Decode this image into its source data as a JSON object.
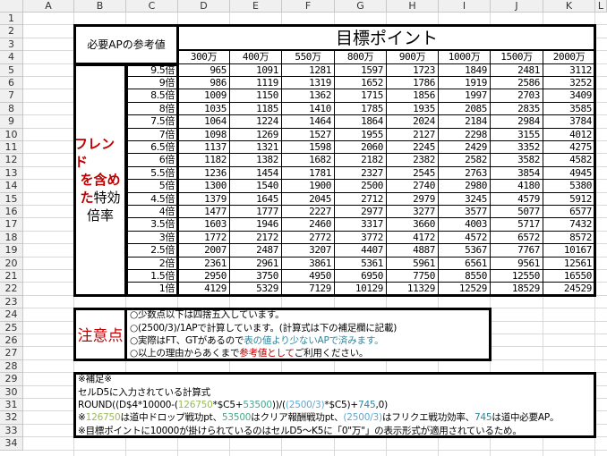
{
  "sheet": {
    "columns": [
      "A",
      "B",
      "C",
      "D",
      "E",
      "F",
      "G",
      "H",
      "I",
      "J",
      "K",
      "L"
    ],
    "row_numbers": [
      1,
      2,
      3,
      4,
      5,
      6,
      7,
      8,
      9,
      10,
      11,
      12,
      13,
      14,
      15,
      16,
      17,
      18,
      19,
      20,
      21,
      22,
      23,
      24,
      25,
      26,
      27,
      28,
      29,
      30,
      31,
      32,
      33,
      34
    ]
  },
  "table": {
    "header_label": "必要APの参考値",
    "title": "目標ポイント",
    "targets": [
      "300万",
      "400万",
      "550万",
      "800万",
      "900万",
      "1000万",
      "1500万",
      "2000万"
    ],
    "side_label": {
      "red_parts": [
        "フレンド",
        "を含め",
        "た"
      ],
      "black_parts": [
        "特効",
        "倍率"
      ],
      "red_color": "#c00000"
    },
    "multipliers": [
      "9.5倍",
      "9倍",
      "8.5倍",
      "8倍",
      "7.5倍",
      "7倍",
      "6.5倍",
      "6倍",
      "5.5倍",
      "5倍",
      "4.5倍",
      "4倍",
      "3.5倍",
      "3倍",
      "2.5倍",
      "2倍",
      "1.5倍",
      "1倍"
    ],
    "values": [
      [
        965,
        1091,
        1281,
        1597,
        1723,
        1849,
        2481,
        3112
      ],
      [
        986,
        1119,
        1319,
        1652,
        1786,
        1919,
        2586,
        3252
      ],
      [
        1009,
        1150,
        1362,
        1715,
        1856,
        1997,
        2703,
        3409
      ],
      [
        1035,
        1185,
        1410,
        1785,
        1935,
        2085,
        2835,
        3585
      ],
      [
        1064,
        1224,
        1464,
        1864,
        2024,
        2184,
        2984,
        3784
      ],
      [
        1098,
        1269,
        1527,
        1955,
        2127,
        2298,
        3155,
        4012
      ],
      [
        1137,
        1321,
        1598,
        2060,
        2245,
        2429,
        3352,
        4275
      ],
      [
        1182,
        1382,
        1682,
        2182,
        2382,
        2582,
        3582,
        4582
      ],
      [
        1236,
        1454,
        1781,
        2327,
        2545,
        2763,
        3854,
        4945
      ],
      [
        1300,
        1540,
        1900,
        2500,
        2740,
        2980,
        4180,
        5380
      ],
      [
        1379,
        1645,
        2045,
        2712,
        2979,
        3245,
        4579,
        5912
      ],
      [
        1477,
        1777,
        2227,
        2977,
        3277,
        3577,
        5077,
        6577
      ],
      [
        1603,
        1946,
        2460,
        3317,
        3660,
        4003,
        5717,
        7432
      ],
      [
        1772,
        2172,
        2772,
        3772,
        4172,
        4572,
        6572,
        8572
      ],
      [
        2007,
        2487,
        3207,
        4407,
        4887,
        5367,
        7767,
        10167
      ],
      [
        2361,
        2961,
        3861,
        5361,
        5961,
        6561,
        9561,
        12561
      ],
      [
        2950,
        3750,
        4950,
        6950,
        7750,
        8550,
        12550,
        16550
      ],
      [
        4129,
        5329,
        7129,
        10129,
        11329,
        12529,
        18529,
        24529
      ]
    ]
  },
  "notes": {
    "label": "注意点",
    "label_color": "#c00000",
    "lines": [
      [
        {
          "text": "○少数点以下は四捨五入しています。",
          "color": "#000000"
        }
      ],
      [
        {
          "text": "○(2500/3)/1APで計算しています。(計算式は下の補足欄に記載)",
          "color": "#000000"
        }
      ],
      [
        {
          "text": "○実際はFT、GTがあるので",
          "color": "#000000"
        },
        {
          "text": "表の値より少ないAPで済みます。",
          "color": "#31859c"
        }
      ],
      [
        {
          "text": "○以上の理由からあくまで",
          "color": "#000000"
        },
        {
          "text": "参考値として",
          "color": "#c00000"
        },
        {
          "text": "ご利用ください。",
          "color": "#000000"
        }
      ]
    ]
  },
  "supplement": {
    "lines": [
      [
        {
          "text": "※補足※",
          "color": "#000000"
        }
      ],
      [
        {
          "text": "セルD5に入力されている計算式",
          "color": "#000000"
        }
      ],
      [
        {
          "text": "ROUND((D$4*10000-(",
          "color": "#000000"
        },
        {
          "text": "126750",
          "color": "#9bbb59"
        },
        {
          "text": "*$C5+",
          "color": "#000000"
        },
        {
          "text": "53500",
          "color": "#4aa58c"
        },
        {
          "text": "))/(",
          "color": "#000000"
        },
        {
          "text": "(2500/3)",
          "color": "#5fa8d3"
        },
        {
          "text": "*$C5)+",
          "color": "#000000"
        },
        {
          "text": "745",
          "color": "#31859c"
        },
        {
          "text": ",0)",
          "color": "#000000"
        }
      ],
      [
        {
          "text": "※",
          "color": "#000000"
        },
        {
          "text": "126750",
          "color": "#9bbb59"
        },
        {
          "text": "は道中ドロップ戦功pt、",
          "color": "#000000"
        },
        {
          "text": "53500",
          "color": "#4aa58c"
        },
        {
          "text": "はクリア報酬戦功pt、",
          "color": "#000000"
        },
        {
          "text": "(2500/3)",
          "color": "#5fa8d3"
        },
        {
          "text": "はフリクエ戦功効率、",
          "color": "#000000"
        },
        {
          "text": "745",
          "color": "#31859c"
        },
        {
          "text": "は道中必要AP。",
          "color": "#000000"
        }
      ],
      [
        {
          "text": "※目標ポイントに10000が掛けられているのはセルD5～K5に「0\"万\"」の表示形式が適用されているため。",
          "color": "#000000"
        }
      ]
    ]
  }
}
